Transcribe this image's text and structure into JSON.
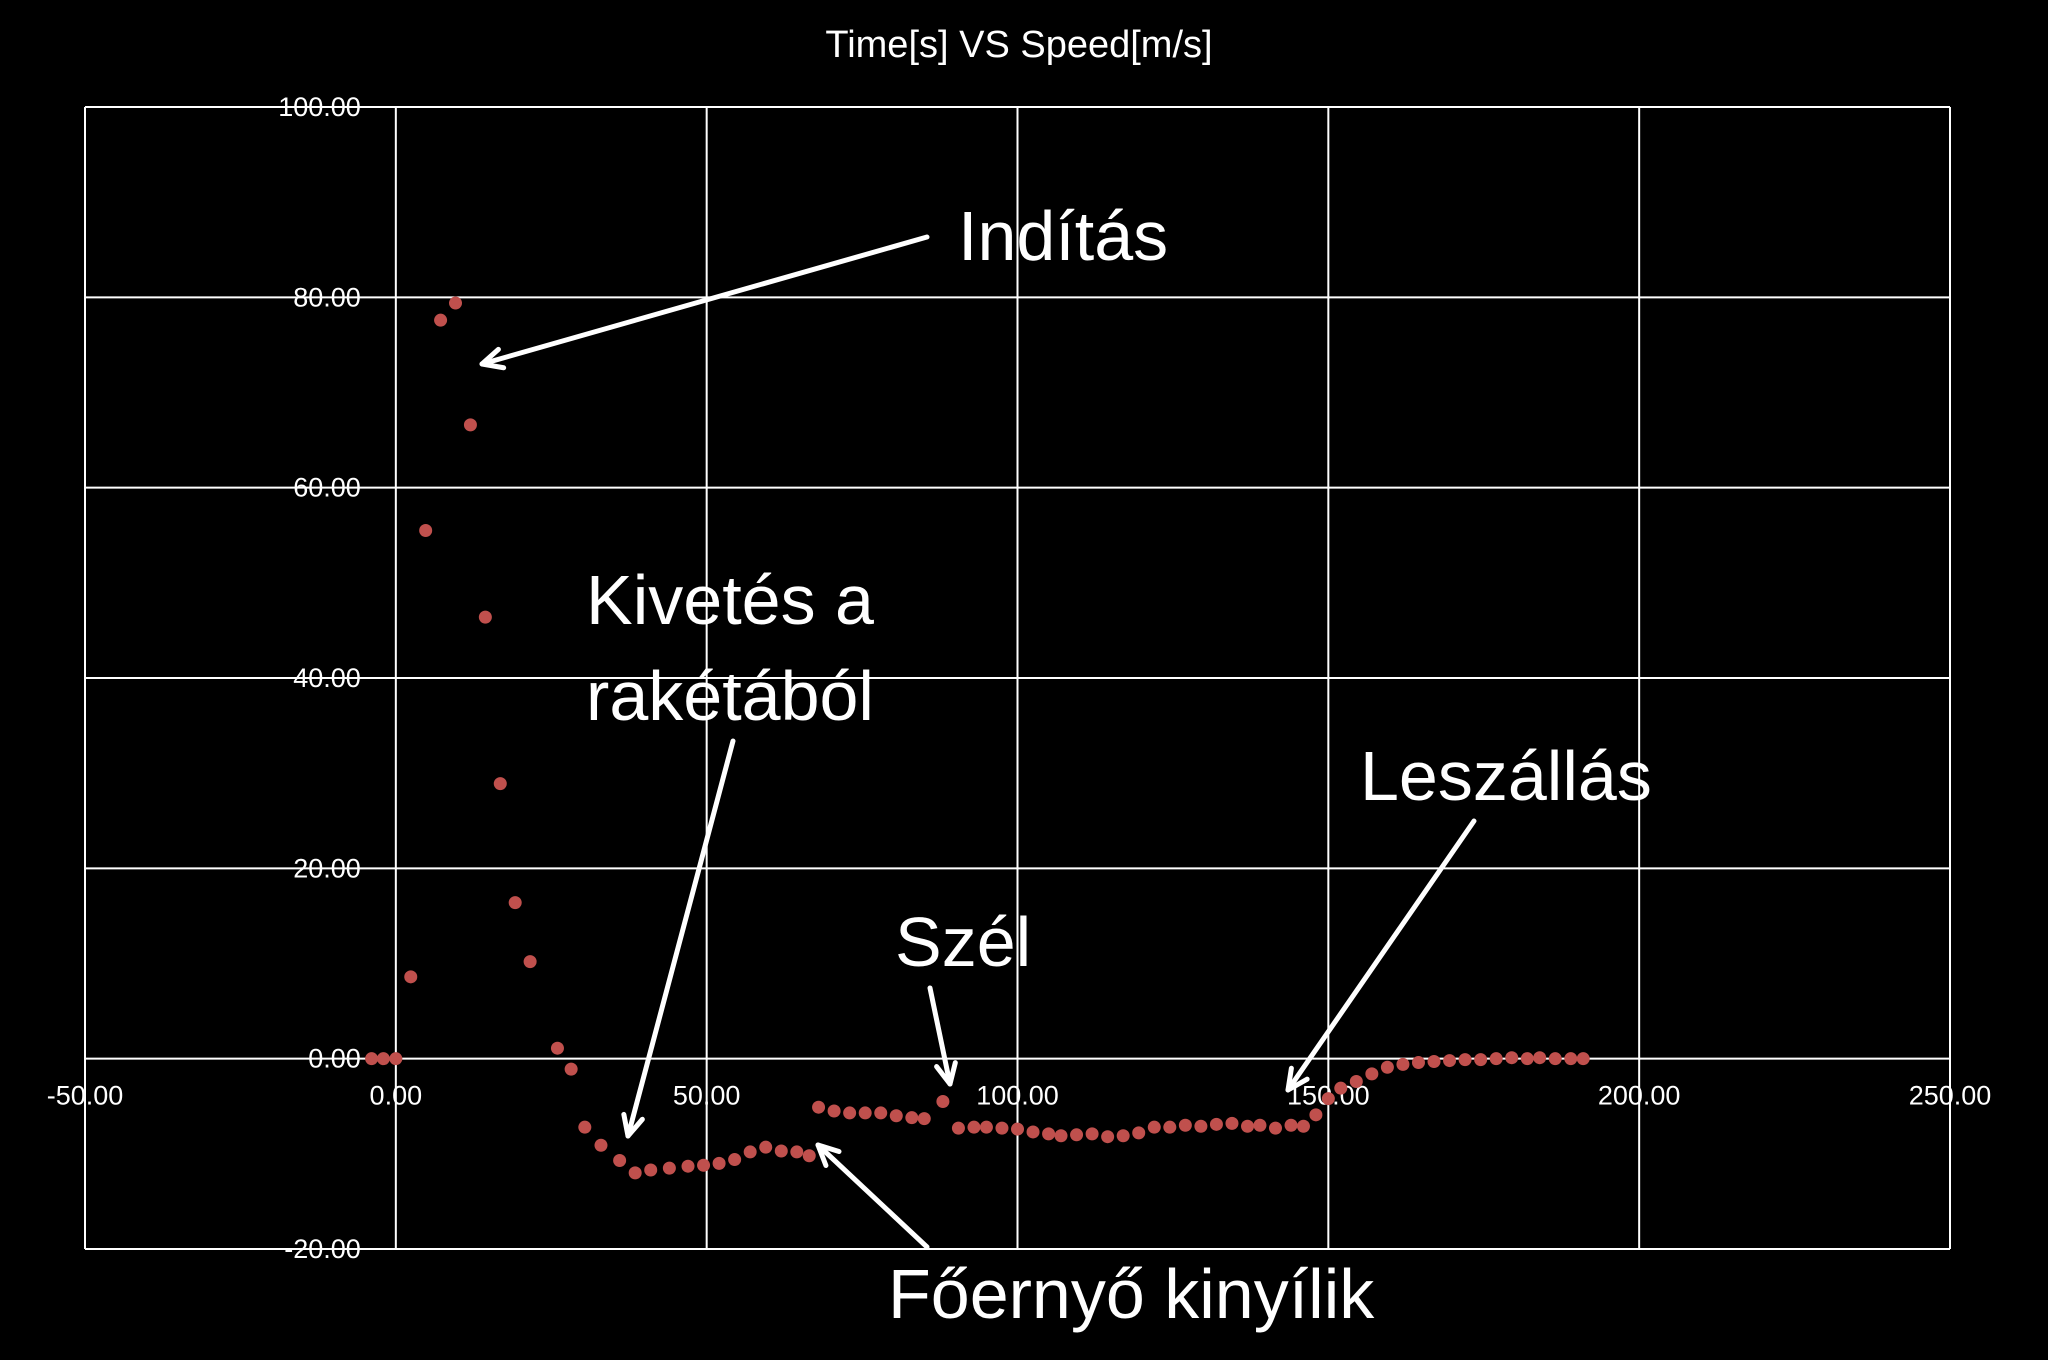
{
  "chart_data": {
    "type": "scatter",
    "title": "Time[s] VS Speed[m/s]",
    "xlabel": "",
    "ylabel": "",
    "xlim": [
      -50,
      250
    ],
    "ylim": [
      -20,
      100
    ],
    "x_ticks": [
      -50,
      0,
      50,
      100,
      150,
      200,
      250
    ],
    "y_ticks": [
      -20,
      0,
      20,
      40,
      60,
      80,
      100
    ],
    "x_tick_labels": [
      "-50.00",
      "0.00",
      "50.00",
      "100.00",
      "150.00",
      "200.00",
      "250.00"
    ],
    "y_tick_labels": [
      "-20.00",
      "0.00",
      "20.00",
      "40.00",
      "60.00",
      "80.00",
      "100.00"
    ],
    "grid": true,
    "marker_color": "#c0504d",
    "series": [
      {
        "points": [
          [
            -3.9,
            0.0
          ],
          [
            -2.0,
            0.0
          ],
          [
            0.0,
            0.0
          ],
          [
            2.4,
            8.6
          ],
          [
            4.8,
            55.5
          ],
          [
            7.2,
            77.6
          ],
          [
            9.6,
            79.4
          ],
          [
            12.0,
            66.6
          ],
          [
            14.4,
            46.4
          ],
          [
            16.8,
            28.9
          ],
          [
            19.2,
            16.4
          ],
          [
            21.6,
            10.2
          ],
          [
            26.0,
            1.1
          ],
          [
            28.2,
            -1.1
          ],
          [
            30.4,
            -7.2
          ],
          [
            33.0,
            -9.1
          ],
          [
            36.0,
            -10.7
          ],
          [
            38.5,
            -12.0
          ],
          [
            41.0,
            -11.7
          ],
          [
            44.0,
            -11.5
          ],
          [
            47.0,
            -11.3
          ],
          [
            49.5,
            -11.2
          ],
          [
            52.0,
            -11.0
          ],
          [
            54.5,
            -10.6
          ],
          [
            57.0,
            -9.8
          ],
          [
            59.5,
            -9.3
          ],
          [
            62.0,
            -9.7
          ],
          [
            64.5,
            -9.8
          ],
          [
            66.5,
            -10.2
          ],
          [
            68.0,
            -5.1
          ],
          [
            70.5,
            -5.5
          ],
          [
            73.0,
            -5.7
          ],
          [
            75.5,
            -5.7
          ],
          [
            78.0,
            -5.7
          ],
          [
            80.5,
            -6.0
          ],
          [
            83.0,
            -6.2
          ],
          [
            85.0,
            -6.3
          ],
          [
            88.0,
            -4.5
          ],
          [
            90.5,
            -7.3
          ],
          [
            93.0,
            -7.2
          ],
          [
            95.0,
            -7.2
          ],
          [
            97.5,
            -7.3
          ],
          [
            100.0,
            -7.4
          ],
          [
            102.5,
            -7.7
          ],
          [
            105.0,
            -7.9
          ],
          [
            107.0,
            -8.1
          ],
          [
            109.5,
            -8.0
          ],
          [
            112.0,
            -7.9
          ],
          [
            114.5,
            -8.2
          ],
          [
            117.0,
            -8.1
          ],
          [
            119.5,
            -7.8
          ],
          [
            122.0,
            -7.2
          ],
          [
            124.5,
            -7.2
          ],
          [
            127.0,
            -7.0
          ],
          [
            129.5,
            -7.1
          ],
          [
            132.0,
            -6.9
          ],
          [
            134.5,
            -6.8
          ],
          [
            137.0,
            -7.1
          ],
          [
            139.0,
            -7.0
          ],
          [
            141.5,
            -7.3
          ],
          [
            144.0,
            -7.0
          ],
          [
            146.0,
            -7.1
          ],
          [
            148.0,
            -5.9
          ],
          [
            150.0,
            -4.2
          ],
          [
            152.0,
            -3.1
          ],
          [
            154.5,
            -2.4
          ],
          [
            157.0,
            -1.6
          ],
          [
            159.5,
            -0.9
          ],
          [
            162.0,
            -0.6
          ],
          [
            164.5,
            -0.4
          ],
          [
            167.0,
            -0.3
          ],
          [
            169.5,
            -0.2
          ],
          [
            172.0,
            -0.1
          ],
          [
            174.5,
            -0.1
          ],
          [
            177.0,
            0.0
          ],
          [
            179.5,
            0.1
          ],
          [
            182.0,
            0.0
          ],
          [
            184.0,
            0.1
          ],
          [
            186.5,
            0.0
          ],
          [
            189.0,
            0.0
          ],
          [
            191.0,
            0.0
          ]
        ]
      }
    ],
    "annotations": [
      {
        "text": "Indítás",
        "lines": [
          "Indítás"
        ]
      },
      {
        "text": "Kivetés a rakétából",
        "lines": [
          "Kivetés a",
          "rakétából"
        ]
      },
      {
        "text": "Szél",
        "lines": [
          "Szél"
        ]
      },
      {
        "text": "Leszállás",
        "lines": [
          "Leszállás"
        ]
      },
      {
        "text": "Főernyő kinyílik",
        "lines": [
          "Főernyő kinyílik"
        ]
      }
    ]
  }
}
